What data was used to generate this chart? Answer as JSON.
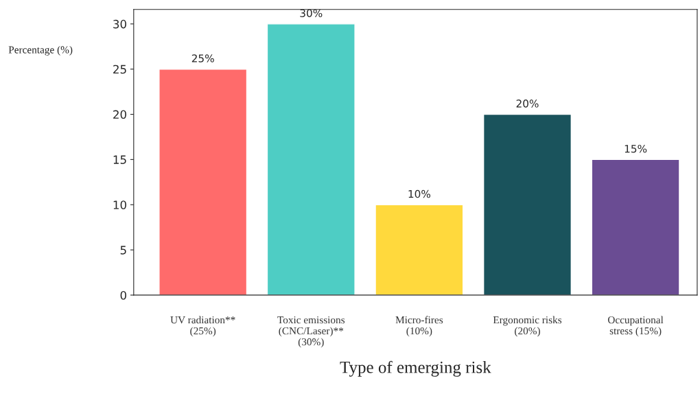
{
  "chart_data": {
    "type": "bar",
    "xlabel": "Type of emerging risk",
    "ylabel": "Percentage (%)",
    "categories": [
      "UV radiation**\n(25%)",
      "Toxic emissions\n(CNC/Laser)**\n(30%)",
      "Micro-fires\n(10%)",
      "Ergonomic risks\n(20%)",
      "Occupational\nstress (15%)"
    ],
    "values": [
      25,
      30,
      10,
      20,
      15
    ],
    "colors": [
      "#ff6b6b",
      "#4ecdc4",
      "#ffd93d",
      "#1a535c",
      "#6a4c93"
    ],
    "value_labels": [
      "25%",
      "30%",
      "10%",
      "20%",
      "15%"
    ],
    "ylim": [
      0,
      31.6
    ],
    "yticks": [
      0,
      5,
      10,
      15,
      20,
      25,
      30
    ],
    "grid": false,
    "legend": false
  }
}
